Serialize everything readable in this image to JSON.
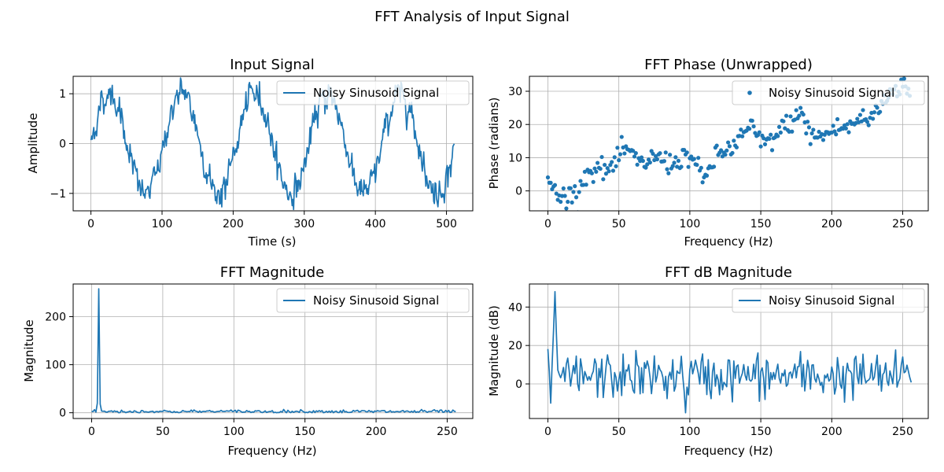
{
  "figure": {
    "suptitle": "FFT Analysis of Input Signal",
    "series_color": "#1f77b4"
  },
  "chart_data": [
    {
      "id": "input",
      "type": "line",
      "title": "Input Signal",
      "xlabel": "Time (s)",
      "ylabel": "Amplitude",
      "xlim": [
        -25,
        537
      ],
      "ylim": [
        -1.35,
        1.35
      ],
      "xticks": [
        0,
        100,
        200,
        300,
        400,
        500
      ],
      "xticklabels": [
        "0",
        "100",
        "200",
        "300",
        "400",
        "500"
      ],
      "yticks": [
        -1,
        0,
        1
      ],
      "yticklabels": [
        "−1",
        "0",
        "1"
      ],
      "grid": true,
      "legend": "upper-right",
      "series": [
        {
          "name": "Noisy Sinusoid Signal",
          "style": "line",
          "signal": {
            "kind": "sine",
            "n": 512,
            "period": 102.4,
            "amplitude": 1.0,
            "noise": 0.12
          }
        }
      ]
    },
    {
      "id": "phase",
      "type": "scatter",
      "title": "FFT Phase (Unwrapped)",
      "xlabel": "Frequency (Hz)",
      "ylabel": "Phase (radians)",
      "xlim": [
        -13,
        268
      ],
      "ylim": [
        -6,
        34.5
      ],
      "xticks": [
        0,
        50,
        100,
        150,
        200,
        250
      ],
      "xticklabels": [
        "0",
        "50",
        "100",
        "150",
        "200",
        "250"
      ],
      "yticks": [
        0,
        10,
        20,
        30
      ],
      "yticklabels": [
        "0",
        "10",
        "20",
        "30"
      ],
      "grid": true,
      "legend": "upper-right",
      "series": [
        {
          "name": "Noisy Sinusoid Signal",
          "style": "points",
          "anchors": [
            [
              0,
              3
            ],
            [
              5,
              0
            ],
            [
              10,
              -2
            ],
            [
              15,
              -1
            ],
            [
              20,
              -1
            ],
            [
              25,
              4
            ],
            [
              30,
              6
            ],
            [
              35,
              7
            ],
            [
              40,
              6
            ],
            [
              45,
              7
            ],
            [
              50,
              10
            ],
            [
              55,
              13
            ],
            [
              60,
              10
            ],
            [
              65,
              8
            ],
            [
              70,
              9
            ],
            [
              75,
              10
            ],
            [
              80,
              10
            ],
            [
              85,
              8
            ],
            [
              90,
              9
            ],
            [
              95,
              10
            ],
            [
              100,
              11
            ],
            [
              105,
              7
            ],
            [
              110,
              3
            ],
            [
              115,
              8
            ],
            [
              120,
              11
            ],
            [
              125,
              12
            ],
            [
              130,
              13
            ],
            [
              135,
              16
            ],
            [
              140,
              18
            ],
            [
              145,
              19
            ],
            [
              150,
              14
            ],
            [
              155,
              15
            ],
            [
              160,
              16
            ],
            [
              165,
              19
            ],
            [
              170,
              20
            ],
            [
              175,
              23
            ],
            [
              180,
              22
            ],
            [
              185,
              17
            ],
            [
              190,
              16
            ],
            [
              195,
              17
            ],
            [
              200,
              18
            ],
            [
              205,
              19
            ],
            [
              210,
              19
            ],
            [
              215,
              20
            ],
            [
              220,
              22
            ],
            [
              225,
              21
            ],
            [
              230,
              23
            ],
            [
              235,
              26
            ],
            [
              240,
              29
            ],
            [
              245,
              31
            ],
            [
              250,
              32
            ],
            [
              255,
              31
            ]
          ],
          "jitter": 1.6
        }
      ]
    },
    {
      "id": "magnitude",
      "type": "line",
      "title": "FFT Magnitude",
      "xlabel": "Frequency (Hz)",
      "ylabel": "Magnitude",
      "xlim": [
        -13,
        268
      ],
      "ylim": [
        -12,
        268
      ],
      "xticks": [
        0,
        50,
        100,
        150,
        200,
        250
      ],
      "xticklabels": [
        "0",
        "50",
        "100",
        "150",
        "200",
        "250"
      ],
      "yticks": [
        0,
        100,
        200
      ],
      "yticklabels": [
        "0",
        "100",
        "200"
      ],
      "grid": true,
      "legend": "upper-right",
      "series": [
        {
          "name": "Noisy Sinusoid Signal",
          "style": "line",
          "n": 257,
          "baseline": 2.5,
          "noise": 1.8,
          "peaks": [
            [
              4,
              20
            ],
            [
              5,
              258
            ],
            [
              6,
              18
            ]
          ]
        }
      ]
    },
    {
      "id": "db",
      "type": "line",
      "title": "FFT dB Magnitude",
      "xlabel": "Frequency (Hz)",
      "ylabel": "Magnitude (dB)",
      "xlim": [
        -13,
        268
      ],
      "ylim": [
        -18,
        52
      ],
      "xticks": [
        0,
        50,
        100,
        150,
        200,
        250
      ],
      "xticklabels": [
        "0",
        "50",
        "100",
        "150",
        "200",
        "250"
      ],
      "yticks": [
        0,
        20,
        40
      ],
      "yticklabels": [
        "0",
        "20",
        "40"
      ],
      "grid": true,
      "legend": "upper-right",
      "series": [
        {
          "name": "Noisy Sinusoid Signal",
          "style": "line",
          "n": 257,
          "baseline": 4,
          "noise": 6,
          "peaks": [
            [
              2,
              -10
            ],
            [
              4,
              28
            ],
            [
              5,
              48
            ],
            [
              6,
              26
            ],
            [
              97,
              -15
            ]
          ]
        }
      ]
    }
  ]
}
